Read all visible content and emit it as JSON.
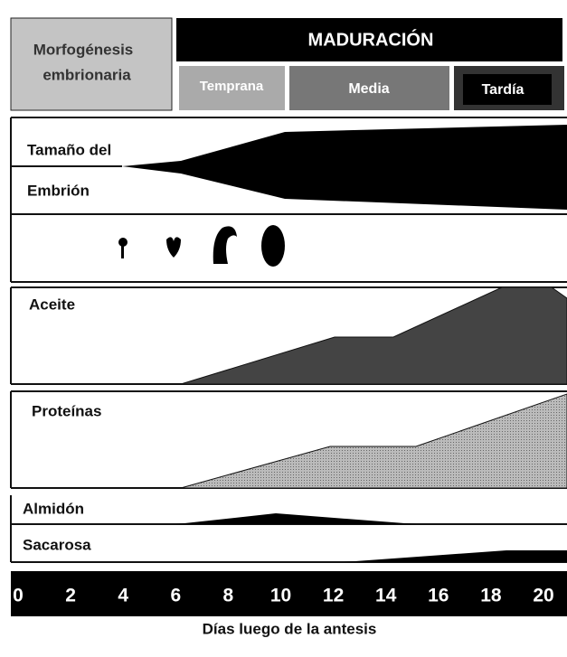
{
  "header": {
    "left": [
      "Morfogénesis",
      "embrionaria"
    ],
    "main": "MADURACIÓN",
    "phases": [
      "Temprana",
      "Media",
      "Tardía"
    ]
  },
  "rows": {
    "size": [
      "Tamaño del",
      "Embrión"
    ],
    "oil": "Aceite",
    "protein": "Proteínas",
    "starch": "Almidón",
    "sucrose": "Sacarosa"
  },
  "axis": {
    "ticks": [
      0,
      2,
      4,
      6,
      8,
      10,
      12,
      14,
      16,
      18,
      20
    ],
    "label": "Días luego de la antesis"
  }
}
